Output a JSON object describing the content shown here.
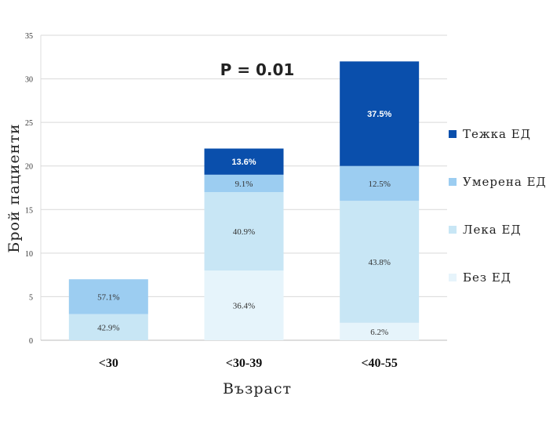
{
  "chart_data": {
    "type": "bar",
    "stacked": true,
    "categories": [
      "<30",
      "<30-39",
      "<40-55"
    ],
    "series": [
      {
        "name": "Без ЕД",
        "color": "#e6f4fb",
        "values": [
          0,
          8,
          2
        ],
        "labels": [
          "",
          "36.4%",
          "6.2%"
        ]
      },
      {
        "name": "Лека ЕД",
        "color": "#c8e6f5",
        "values": [
          3,
          9,
          14
        ],
        "labels": [
          "42.9%",
          "40.9%",
          "43.8%"
        ]
      },
      {
        "name": "Умерена ЕД",
        "color": "#9ccdf1",
        "values": [
          4,
          2,
          4
        ],
        "labels": [
          "57.1%",
          "9.1%",
          "12.5%"
        ]
      },
      {
        "name": "Тежка ЕД",
        "color": "#0a4fac",
        "values": [
          0,
          3,
          12
        ],
        "labels": [
          "",
          "13.6%",
          "37.5%"
        ]
      }
    ],
    "xlabel": "Възраст",
    "ylabel": "Брой пациенти",
    "ylim": [
      0,
      35
    ],
    "yticks": [
      0,
      5,
      10,
      15,
      20,
      25,
      30,
      35
    ],
    "grid": true,
    "legend": "right",
    "annotation": "P = 0.01"
  }
}
